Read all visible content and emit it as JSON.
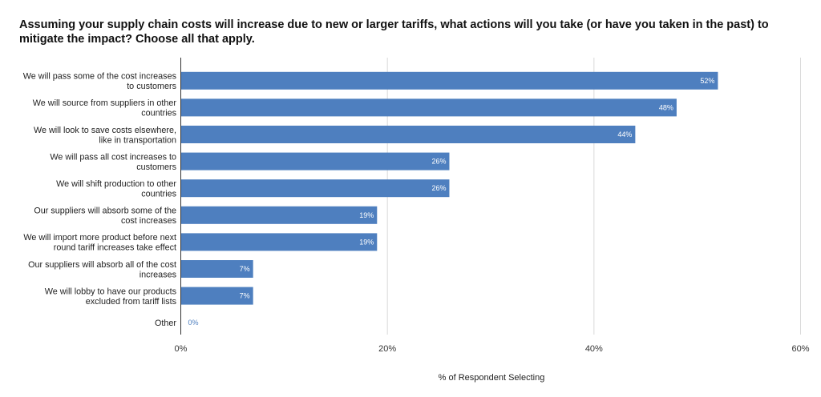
{
  "chart_data": {
    "type": "bar",
    "orientation": "horizontal",
    "title": "Assuming your supply chain costs will increase due to new or larger tariffs, what actions will you take (or have you taken in the past) to mitigate the impact? Choose all that apply.",
    "xlabel": "% of Respondent Selecting",
    "ylabel": "",
    "xlim": [
      0,
      60
    ],
    "x_ticks": [
      "0%",
      "20%",
      "40%",
      "60%"
    ],
    "grid": true,
    "legend": "none",
    "bar_color": "#4e7fbf",
    "categories": [
      [
        "We will pass some of the cost increases",
        "to customers"
      ],
      [
        "We will source from suppliers in other",
        "countries"
      ],
      [
        "We will look to save costs elsewhere,",
        "like in transportation"
      ],
      [
        "We will pass all cost increases to",
        "customers"
      ],
      [
        "We will shift production to other",
        "countries"
      ],
      [
        "Our suppliers will absorb some of the",
        "cost increases"
      ],
      [
        "We will import more product before next",
        "round tariff increases take effect"
      ],
      [
        "Our suppliers will absorb all of the cost",
        "increases"
      ],
      [
        "We will lobby to have our products",
        "excluded from tariff lists"
      ],
      [
        "Other"
      ]
    ],
    "values": [
      52,
      48,
      44,
      26,
      26,
      19,
      19,
      7,
      7,
      0
    ],
    "labels": [
      "52%",
      "48%",
      "44%",
      "26%",
      "26%",
      "19%",
      "19%",
      "7%",
      "7%",
      "0%"
    ]
  }
}
